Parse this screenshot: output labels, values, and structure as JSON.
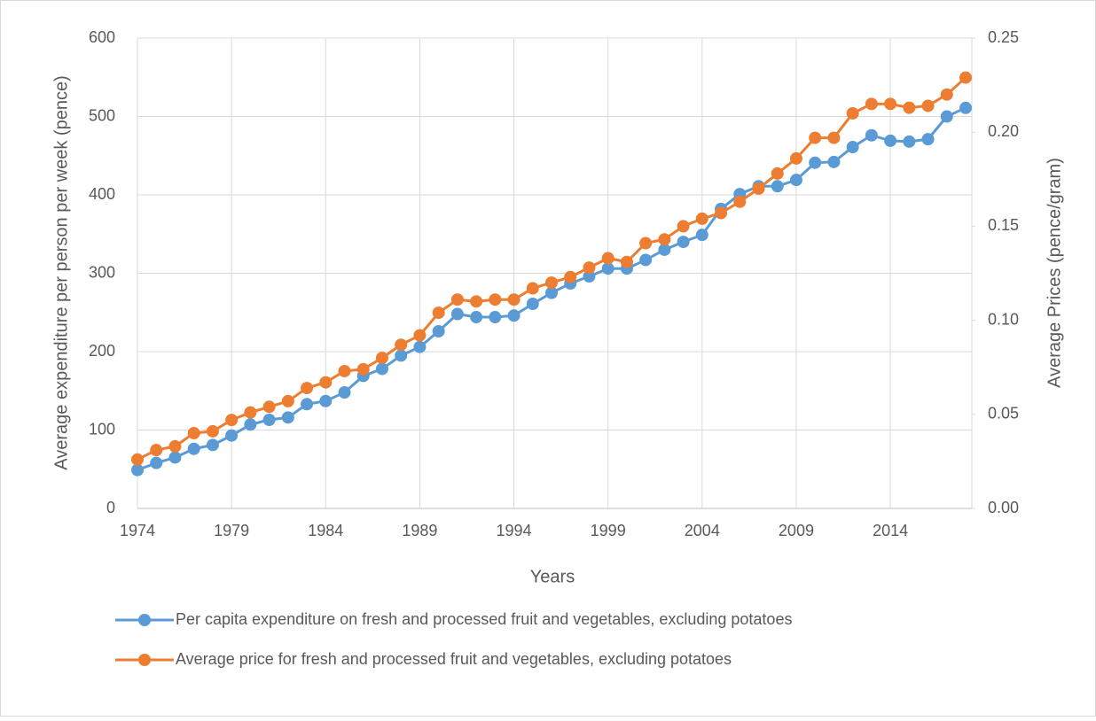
{
  "chart_data": {
    "type": "line",
    "x": [
      1974,
      1975,
      1976,
      1977,
      1978,
      1979,
      1980,
      1981,
      1982,
      1983,
      1984,
      1985,
      1986,
      1987,
      1988,
      1989,
      1990,
      1991,
      1992,
      1993,
      1994,
      1995,
      1996,
      1997,
      1998,
      1999,
      2000,
      2001,
      2002,
      2003,
      2004,
      2005,
      2006,
      2007,
      2008,
      2009,
      2010,
      2011,
      2012,
      2013,
      2014,
      2015,
      2016,
      2017,
      2018
    ],
    "xlabel": "Years",
    "ylabel": "Average expenditure per person per week (pence)",
    "y2label": "Average Prices (pence/gram)",
    "xlim": [
      1974,
      2018
    ],
    "xticks": [
      1974,
      1979,
      1984,
      1989,
      1994,
      1999,
      2004,
      2009,
      2014
    ],
    "ylim": [
      0,
      600
    ],
    "yticks": [
      0,
      100,
      200,
      300,
      400,
      500,
      600
    ],
    "y2lim": [
      0,
      0.25
    ],
    "y2ticks": [
      {
        "value": 0,
        "label": "0.00"
      },
      {
        "value": 0.05,
        "label": "0.05"
      },
      {
        "value": 0.1,
        "label": "0.10"
      },
      {
        "value": 0.15,
        "label": "0.15"
      },
      {
        "value": 0.2,
        "label": "0.20"
      },
      {
        "value": 0.25,
        "label": "0.25"
      }
    ],
    "grid": true,
    "legend": "bottom",
    "series": [
      {
        "name": "Per capita expenditure on fresh and processed fruit and vegetables, excluding potatoes",
        "color": "#5b9bd5",
        "values": [
          49,
          58,
          65,
          76,
          81,
          93,
          107,
          113,
          116,
          133,
          137,
          148,
          169,
          178,
          195,
          206,
          226,
          248,
          244,
          244,
          246,
          261,
          275,
          287,
          296,
          306,
          306,
          317,
          330,
          340,
          349,
          382,
          401,
          411,
          411,
          419,
          441,
          442,
          461,
          476,
          469,
          468,
          471,
          500,
          511
        ]
      },
      {
        "name": "Average price for fresh and processed fruit and vegetables, excluding potatoes",
        "color": "#ed7d31",
        "axis": "y2",
        "values": [
          0.026,
          0.031,
          0.033,
          0.04,
          0.041,
          0.047,
          0.051,
          0.054,
          0.057,
          0.064,
          0.067,
          0.073,
          0.074,
          0.08,
          0.087,
          0.092,
          0.104,
          0.111,
          0.11,
          0.111,
          0.111,
          0.117,
          0.12,
          0.123,
          0.128,
          0.133,
          0.131,
          0.141,
          0.143,
          0.15,
          0.154,
          0.157,
          0.163,
          0.17,
          0.178,
          0.186,
          0.197,
          0.197,
          0.21,
          0.215,
          0.215,
          0.213,
          0.214,
          0.22,
          0.229
        ]
      }
    ]
  }
}
